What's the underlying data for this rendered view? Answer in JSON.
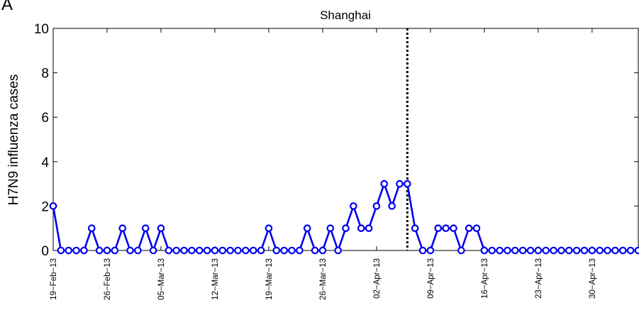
{
  "panel_label": "A",
  "chart_data": {
    "type": "line",
    "title": "Shanghai",
    "xlabel": "",
    "ylabel": "H7N9 influenza cases",
    "ylim": [
      0,
      10
    ],
    "y_ticks": [
      0,
      2,
      4,
      6,
      8,
      10
    ],
    "x_tick_labels": [
      "19−Feb−13",
      "26−Feb−13",
      "05−Mar−13",
      "12−Mar−13",
      "19−Mar−13",
      "26−Mar−13",
      "02−Apr−13",
      "09−Apr−13",
      "16−Apr−13",
      "23−Apr−13",
      "30−Apr−13"
    ],
    "x_start": "2013-02-19",
    "x_end": "2013-05-06",
    "x_tick_dates": [
      "2013-02-19",
      "2013-02-26",
      "2013-03-05",
      "2013-03-12",
      "2013-03-19",
      "2013-03-26",
      "2013-04-02",
      "2013-04-09",
      "2013-04-16",
      "2013-04-23",
      "2013-04-30"
    ],
    "vline_date": "2013-04-06",
    "series": [
      {
        "name": "",
        "color": "#0000ee",
        "marker": "circle",
        "values": [
          2,
          0,
          0,
          0,
          0,
          1,
          0,
          0,
          0,
          1,
          0,
          0,
          1,
          0,
          1,
          0,
          0,
          0,
          0,
          0,
          0,
          0,
          0,
          0,
          0,
          0,
          0,
          0,
          1,
          0,
          0,
          0,
          0,
          1,
          0,
          0,
          1,
          0,
          1,
          2,
          1,
          1,
          2,
          3,
          2,
          3,
          3,
          1,
          0,
          0,
          1,
          1,
          1,
          0,
          1,
          1,
          0,
          0,
          0,
          0,
          0,
          0,
          0,
          0,
          0,
          0,
          0,
          0,
          0,
          0,
          0,
          0,
          0,
          0,
          0,
          0,
          0
        ]
      }
    ]
  }
}
